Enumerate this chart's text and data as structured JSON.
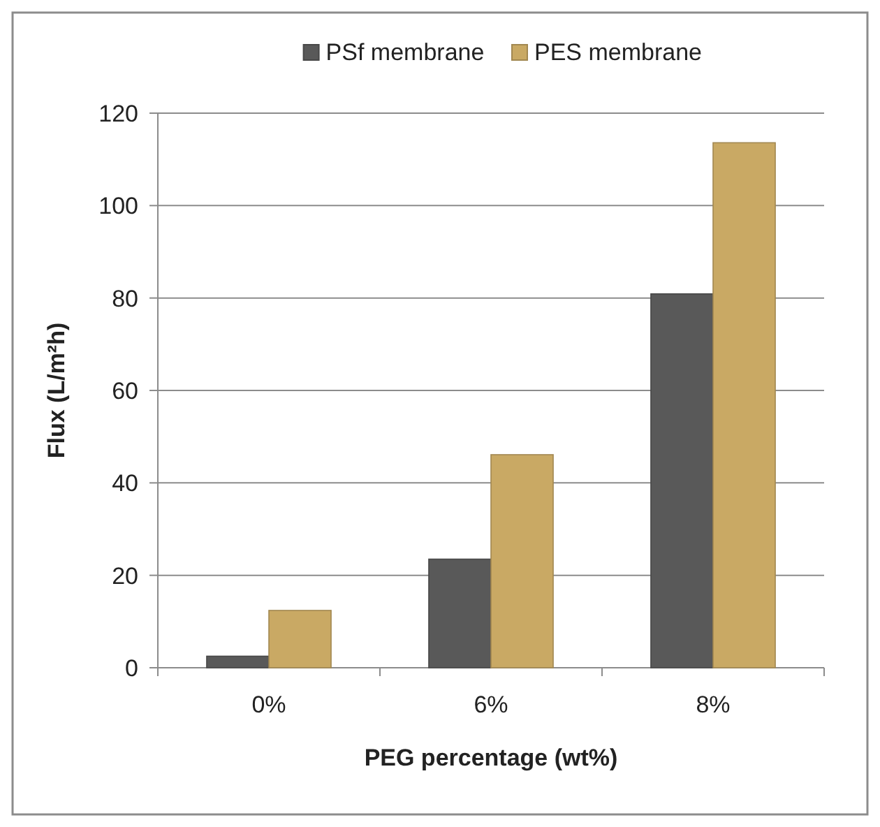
{
  "chart_data": {
    "type": "bar",
    "xlabel": "PEG percentage (wt%)",
    "ylabel": "Flux (L/m²h)",
    "categories": [
      "0%",
      "6%",
      "8%"
    ],
    "series": [
      {
        "name": "PSf membrane",
        "color": "#595959",
        "values": [
          2.5,
          23.5,
          80.9
        ]
      },
      {
        "name": "PES membrane",
        "color": "#c9a964",
        "values": [
          12.4,
          46.1,
          113.6
        ]
      }
    ],
    "ylim": [
      0,
      120
    ],
    "yticks": [
      0,
      20,
      40,
      60,
      80,
      100,
      120
    ],
    "grid": "y",
    "legend": "top"
  }
}
